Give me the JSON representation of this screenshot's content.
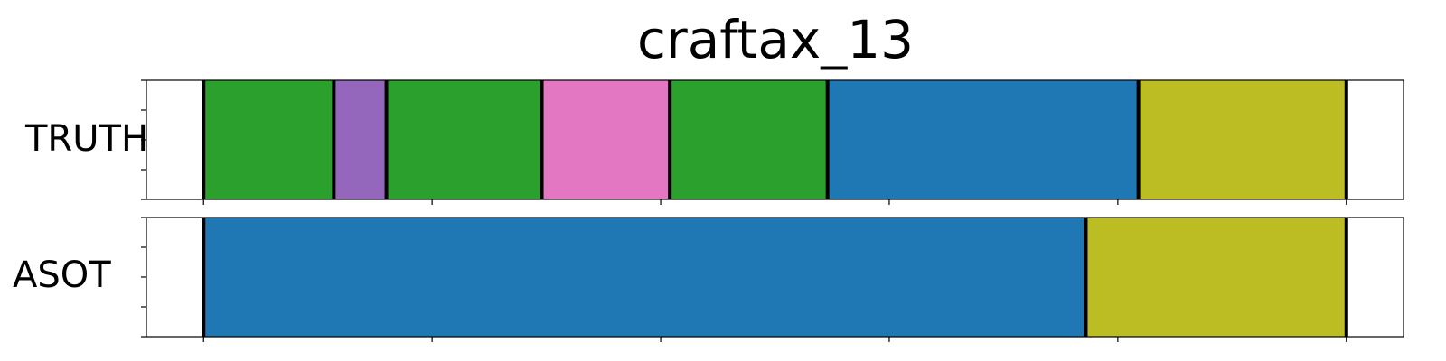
{
  "chart_data": {
    "type": "segmentation-timeline",
    "title": "craftax_13",
    "x_range": [
      -0.25,
      5.25
    ],
    "x_ticks": [
      0,
      1,
      2,
      3,
      4,
      5
    ],
    "rows": [
      {
        "label": "TRUTH",
        "segments": [
          {
            "start": 0.0,
            "end": 0.57,
            "color": "#2ca02c"
          },
          {
            "start": 0.57,
            "end": 0.8,
            "color": "#9467bd"
          },
          {
            "start": 0.8,
            "end": 1.48,
            "color": "#2ca02c"
          },
          {
            "start": 1.48,
            "end": 2.04,
            "color": "#e377c2"
          },
          {
            "start": 2.04,
            "end": 2.73,
            "color": "#2ca02c"
          },
          {
            "start": 2.73,
            "end": 4.09,
            "color": "#1f77b4"
          },
          {
            "start": 4.09,
            "end": 5.0,
            "color": "#bcbd22"
          }
        ]
      },
      {
        "label": "ASOT",
        "segments": [
          {
            "start": 0.0,
            "end": 3.86,
            "color": "#1f77b4"
          },
          {
            "start": 3.86,
            "end": 5.0,
            "color": "#bcbd22"
          }
        ]
      }
    ]
  }
}
